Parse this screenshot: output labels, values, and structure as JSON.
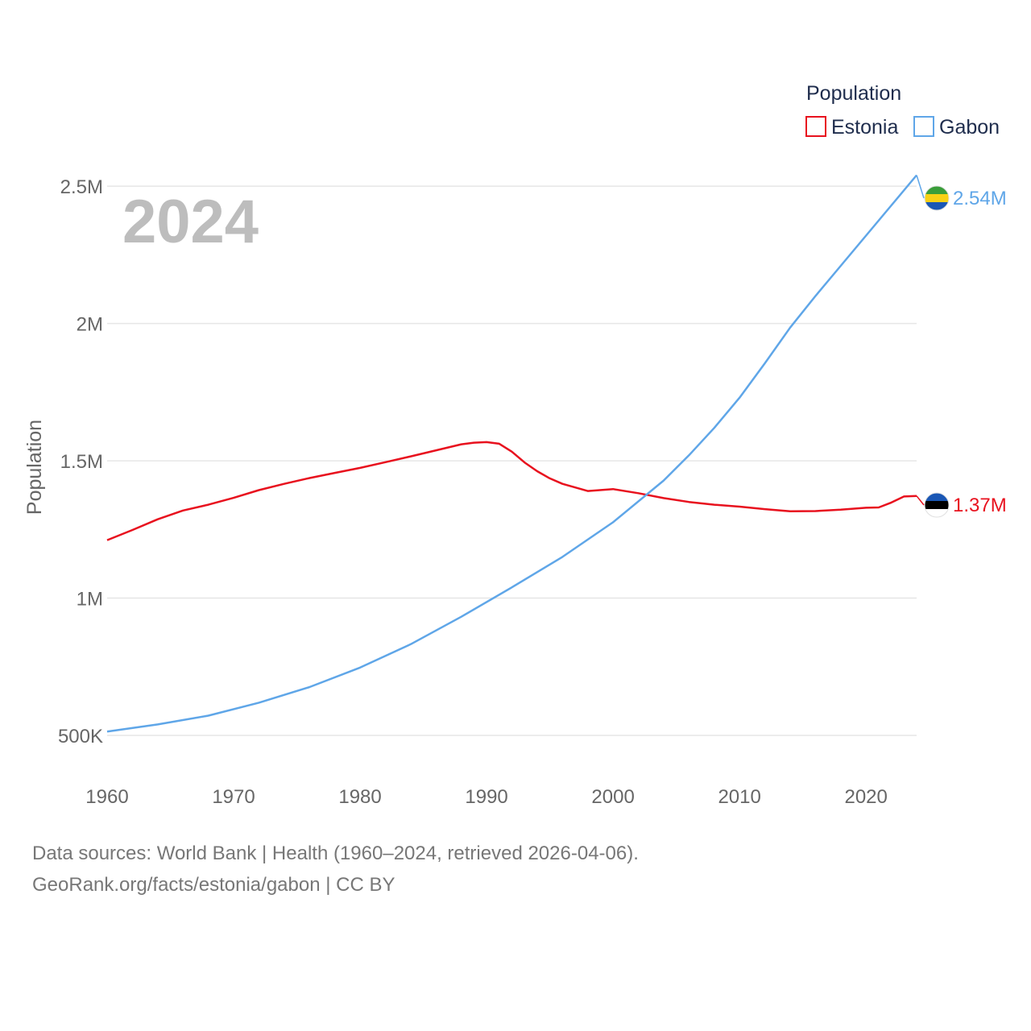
{
  "chart_data": {
    "type": "line",
    "title": "Population",
    "year_label": "2024",
    "ylabel": "Population",
    "xlabel": "",
    "xlim": [
      1960,
      2024
    ],
    "ylim": [
      500000,
      2650000
    ],
    "x_ticks": [
      {
        "value": 1960,
        "label": "1960"
      },
      {
        "value": 1970,
        "label": "1970"
      },
      {
        "value": 1980,
        "label": "1980"
      },
      {
        "value": 1990,
        "label": "1990"
      },
      {
        "value": 2000,
        "label": "2000"
      },
      {
        "value": 2010,
        "label": "2010"
      },
      {
        "value": 2020,
        "label": "2020"
      }
    ],
    "y_ticks": [
      {
        "value": 500000,
        "label": "500K"
      },
      {
        "value": 1000000,
        "label": "1M"
      },
      {
        "value": 1500000,
        "label": "1.5M"
      },
      {
        "value": 2000000,
        "label": "2M"
      },
      {
        "value": 2500000,
        "label": "2.5M"
      }
    ],
    "legend": {
      "title": "Population",
      "position": "top-right"
    },
    "series": [
      {
        "name": "Estonia",
        "color": "#e8111e",
        "end_label": "1.37M",
        "flag": "estonia-flag",
        "x": [
          1960,
          1962,
          1964,
          1966,
          1968,
          1970,
          1972,
          1974,
          1976,
          1978,
          1980,
          1982,
          1984,
          1986,
          1988,
          1989,
          1990,
          1991,
          1992,
          1993,
          1994,
          1995,
          1996,
          1998,
          2000,
          2002,
          2004,
          2006,
          2008,
          2010,
          2012,
          2014,
          2016,
          2018,
          2020,
          2021,
          2022,
          2023,
          2024
        ],
        "values": [
          1211000,
          1248000,
          1287000,
          1319000,
          1340000,
          1365000,
          1393000,
          1416000,
          1437000,
          1456000,
          1474000,
          1495000,
          1516000,
          1538000,
          1560000,
          1566000,
          1568000,
          1562000,
          1533000,
          1494000,
          1462000,
          1436000,
          1416000,
          1390000,
          1397000,
          1382000,
          1364000,
          1350000,
          1340000,
          1333000,
          1324000,
          1316000,
          1317000,
          1322000,
          1329000,
          1330000,
          1348000,
          1370000,
          1372000
        ]
      },
      {
        "name": "Gabon",
        "color": "#5fa6e8",
        "end_label": "2.54M",
        "flag": "gabon-flag",
        "x": [
          1960,
          1964,
          1968,
          1972,
          1976,
          1980,
          1984,
          1988,
          1992,
          1996,
          2000,
          2004,
          2006,
          2008,
          2010,
          2012,
          2014,
          2016,
          2018,
          2020,
          2022,
          2024
        ],
        "values": [
          514000,
          540000,
          572000,
          619000,
          676000,
          747000,
          832000,
          932000,
          1039000,
          1150000,
          1276000,
          1428000,
          1520000,
          1620000,
          1730000,
          1855000,
          1985000,
          2100000,
          2210000,
          2320000,
          2430000,
          2540000
        ]
      }
    ]
  },
  "footer": {
    "line1": "Data sources: World Bank | Health (1960–2024, retrieved 2026-04-06).",
    "line2": "GeoRank.org/facts/estonia/gabon | CC BY"
  }
}
